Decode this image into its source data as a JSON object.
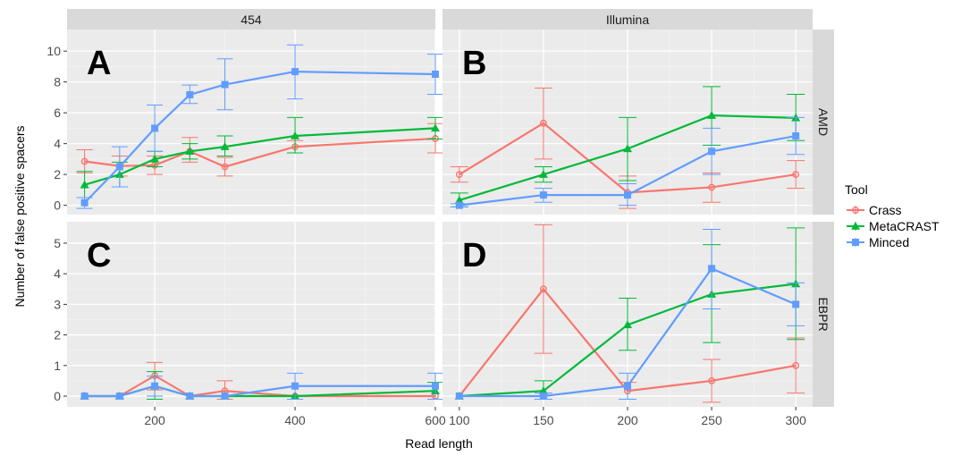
{
  "chart_data": {
    "type": "line",
    "xlabel": "Read length",
    "ylabel": "Number of false positive spacers",
    "legend": {
      "title": "Tool",
      "position": "right"
    },
    "colors": {
      "Crass": "#F8766D",
      "MetaCRAST": "#00BA38",
      "Minced": "#619CFF"
    },
    "columns": [
      "454",
      "Illumina"
    ],
    "rows": [
      "AMD",
      "EBPR"
    ],
    "panels": [
      {
        "label": "A",
        "column": "454",
        "row": "AMD",
        "x": [
          100,
          150,
          200,
          250,
          300,
          400,
          600
        ],
        "xticks": [
          200,
          400,
          600
        ],
        "ylim": [
          -0.6,
          11.4
        ],
        "yticks": [
          0,
          2,
          4,
          6,
          8,
          10
        ],
        "series": [
          {
            "name": "Crass",
            "values": [
              2.85,
              2.55,
              2.6,
              3.5,
              2.5,
              3.8,
              4.33
            ],
            "lower": [
              2.1,
              1.9,
              2.0,
              2.8,
              1.9,
              3.4,
              3.4
            ],
            "upper": [
              3.6,
              3.2,
              3.2,
              4.4,
              3.1,
              4.2,
              5.3
            ]
          },
          {
            "name": "MetaCRAST",
            "values": [
              1.33,
              2.0,
              3.0,
              3.5,
              3.8,
              4.5,
              5.0
            ],
            "lower": [
              0.5,
              1.2,
              2.5,
              3.0,
              3.2,
              3.4,
              4.3
            ],
            "upper": [
              2.2,
              2.8,
              3.5,
              4.0,
              4.5,
              5.7,
              5.7
            ]
          },
          {
            "name": "Minced",
            "values": [
              0.17,
              2.5,
              5.0,
              7.17,
              7.83,
              8.67,
              8.5
            ],
            "lower": [
              -0.2,
              1.2,
              3.5,
              6.6,
              6.2,
              6.9,
              7.2
            ],
            "upper": [
              0.5,
              3.8,
              6.5,
              7.8,
              9.5,
              10.4,
              9.8
            ]
          }
        ]
      },
      {
        "label": "B",
        "column": "Illumina",
        "row": "AMD",
        "x": [
          100,
          150,
          200,
          250,
          300
        ],
        "xticks": [
          100,
          150,
          200,
          250,
          300
        ],
        "ylim": [
          -0.6,
          11.4
        ],
        "yticks": [
          0,
          2,
          4,
          6,
          8,
          10
        ],
        "series": [
          {
            "name": "Crass",
            "values": [
              2.0,
              5.33,
              0.83,
              1.17,
              2.0
            ],
            "lower": [
              1.5,
              3.0,
              -0.2,
              0.2,
              1.1
            ],
            "upper": [
              2.5,
              7.6,
              1.9,
              2.1,
              2.9
            ]
          },
          {
            "name": "MetaCRAST",
            "values": [
              0.33,
              2.0,
              3.67,
              5.83,
              5.67
            ],
            "lower": [
              -0.1,
              1.5,
              1.6,
              3.9,
              4.2
            ],
            "upper": [
              0.8,
              2.5,
              5.7,
              7.7,
              7.2
            ]
          },
          {
            "name": "Minced",
            "values": [
              0.0,
              0.67,
              0.67,
              3.5,
              4.5
            ],
            "lower": [
              -0.1,
              0.2,
              0.0,
              2.0,
              3.3
            ],
            "upper": [
              0.1,
              1.1,
              1.4,
              5.0,
              5.7
            ]
          }
        ]
      },
      {
        "label": "C",
        "column": "454",
        "row": "EBPR",
        "x": [
          100,
          150,
          200,
          250,
          300,
          400,
          600
        ],
        "xticks": [
          200,
          400,
          600
        ],
        "ylim": [
          -0.35,
          5.7
        ],
        "yticks": [
          0,
          1,
          2,
          3,
          4,
          5
        ],
        "series": [
          {
            "name": "Crass",
            "values": [
              0.0,
              0.0,
              0.67,
              0.0,
              0.17,
              0.0,
              0.0
            ],
            "lower": [
              0.0,
              0.0,
              0.2,
              0.0,
              -0.1,
              0.0,
              0.0
            ],
            "upper": [
              0.0,
              0.0,
              1.1,
              0.0,
              0.5,
              0.0,
              0.0
            ]
          },
          {
            "name": "MetaCRAST",
            "values": [
              0.0,
              0.0,
              0.33,
              0.0,
              0.0,
              0.0,
              0.17
            ],
            "lower": [
              0.0,
              0.0,
              -0.1,
              0.0,
              0.0,
              0.0,
              -0.1
            ],
            "upper": [
              0.0,
              0.0,
              0.8,
              0.0,
              0.0,
              0.0,
              0.45
            ]
          },
          {
            "name": "Minced",
            "values": [
              0.0,
              0.0,
              0.33,
              0.0,
              0.0,
              0.33,
              0.33
            ],
            "lower": [
              0.0,
              0.0,
              0.0,
              0.0,
              0.0,
              -0.1,
              -0.1
            ],
            "upper": [
              0.0,
              0.0,
              0.65,
              0.0,
              0.0,
              0.75,
              0.75
            ]
          }
        ]
      },
      {
        "label": "D",
        "column": "Illumina",
        "row": "EBPR",
        "x": [
          100,
          150,
          200,
          250,
          300
        ],
        "xticks": [
          100,
          150,
          200,
          250,
          300
        ],
        "ylim": [
          -0.35,
          5.7
        ],
        "yticks": [
          0,
          1,
          2,
          3,
          4,
          5
        ],
        "series": [
          {
            "name": "Crass",
            "values": [
              0.0,
              3.5,
              0.17,
              0.5,
              1.0
            ],
            "lower": [
              0.0,
              1.4,
              -0.1,
              -0.2,
              0.1
            ],
            "upper": [
              0.0,
              5.6,
              0.45,
              1.2,
              1.9
            ]
          },
          {
            "name": "MetaCRAST",
            "values": [
              0.0,
              0.17,
              2.33,
              3.33,
              3.67
            ],
            "lower": [
              0.0,
              -0.1,
              1.5,
              1.75,
              1.85
            ],
            "upper": [
              0.0,
              0.5,
              3.2,
              4.95,
              5.5
            ]
          },
          {
            "name": "Minced",
            "values": [
              0.0,
              0.0,
              0.33,
              4.17,
              3.0
            ],
            "lower": [
              0.0,
              -0.1,
              -0.1,
              2.85,
              2.3
            ],
            "upper": [
              0.0,
              0.1,
              0.75,
              5.45,
              3.7
            ]
          }
        ]
      }
    ]
  }
}
